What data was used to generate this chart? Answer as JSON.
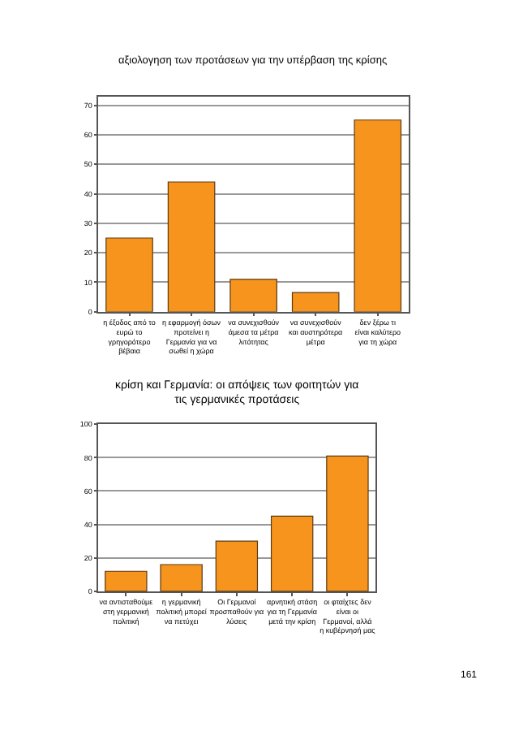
{
  "chart_data": [
    {
      "type": "bar",
      "title": "αξιολογηση των προτάσεων για την υπέρβαση της κρίσης",
      "categories": [
        "η έξοδος από το ευρώ το γρηγορότερο βέβαια",
        "η εφαρμογή όσων προτείνει η Γερμανία για να σωθεί η χώρα",
        "να συνεχισθούν άμεσα τα μέτρα λιτότητας",
        "να συνεχισθούν και αυστηρότερα μέτρα",
        "δεν ξέρω τι είναι καλύτερο για τη χώρα"
      ],
      "values": [
        25,
        44,
        11,
        6.5,
        65
      ],
      "color": "#f7941d",
      "ylim": [
        0,
        73
      ],
      "yticks": [
        0,
        10,
        20,
        30,
        40,
        50,
        60,
        70
      ],
      "grid": "y"
    },
    {
      "type": "bar",
      "title": "κρίση και Γερμανία: οι απόψεις των φοιτητών για τις γερμανικές προτάσεις",
      "categories": [
        "να αντισταθούμε στη γερμανική πολιτική",
        "η γερμανική πολιτική μπορεί να πετύχει",
        "Οι Γερμανοί προσπαθούν για λύσεις",
        "αρνητική στάση για τη Γερμανία μετά την κρίση",
        "οι φταίχτες δεν είναι οι Γερμανοί, αλλά η κυβέρνησή μας"
      ],
      "values": [
        12,
        16,
        30,
        45,
        81
      ],
      "color": "#f7941d",
      "ylim": [
        0,
        100
      ],
      "yticks": [
        0,
        20,
        40,
        60,
        80,
        100
      ],
      "grid": "y",
      "annotations": [
        "161"
      ]
    }
  ]
}
